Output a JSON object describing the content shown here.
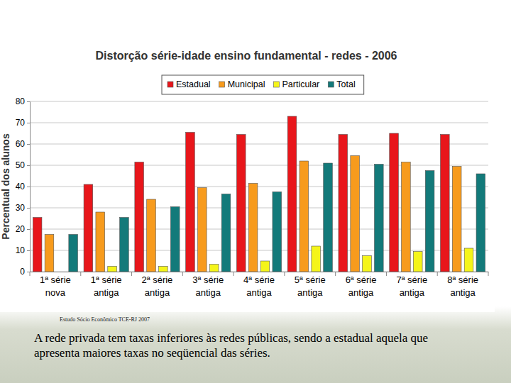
{
  "chart_data": {
    "type": "bar",
    "title": "Distorção série-idade ensino fundamental - redes - 2006",
    "y_label": "Percentual dos alunos",
    "categories": [
      "1ª série\nnova",
      "1ª série\nantiga",
      "2ª série\nantiga",
      "3ª série\nantiga",
      "4ª série\nantiga",
      "5ª série\nantiga",
      "6ª série\nantiga",
      "7ª série\nantiga",
      "8ª série\nantiga"
    ],
    "series": [
      {
        "name": "Estadual",
        "color": "#e8161b",
        "values": [
          25.5,
          41,
          51.5,
          65.5,
          64.5,
          73,
          64.5,
          65,
          64.5
        ]
      },
      {
        "name": "Municipal",
        "color": "#f79b1d",
        "values": [
          17.5,
          28,
          34,
          39.5,
          41.5,
          52,
          54.5,
          51.5,
          49.5
        ]
      },
      {
        "name": "Particular",
        "color": "#f5f51a",
        "values": [
          null,
          2.5,
          2.5,
          3.5,
          5,
          12,
          7.5,
          9.5,
          11
        ]
      },
      {
        "name": "Total",
        "color": "#137a7a",
        "values": [
          17.5,
          25.5,
          30.5,
          36.5,
          37.5,
          51,
          50.5,
          47.5,
          46
        ]
      }
    ],
    "ylim": [
      0,
      80
    ],
    "yticks": [
      0,
      10,
      20,
      30,
      40,
      50,
      60,
      70,
      80
    ],
    "grid": true,
    "legend": "top",
    "annotations": [
      "Estudo Sócio Econômico TCE-RJ 2007",
      "A rede privada tem taxas inferiores às redes públicas, sendo a estadual aquela que apresenta maiores taxas no seqüencial das séries."
    ]
  }
}
